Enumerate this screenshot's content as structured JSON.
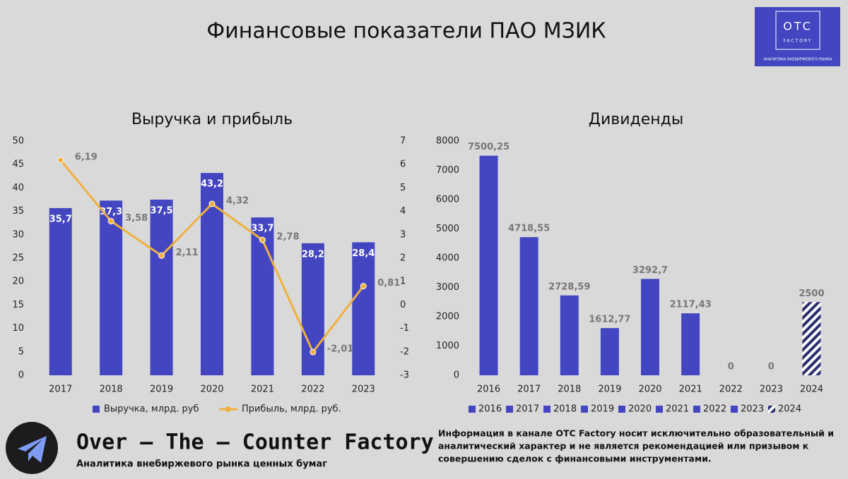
{
  "header": {
    "title": "Финансовые показатели ПАО МЗИК"
  },
  "logo": {
    "mark": "OTC",
    "name": "FACTORY",
    "caption": "АНАЛИТИКА ВНЕБИРЖЕВОГО РЫНКА"
  },
  "chart_data": [
    {
      "type": "bar",
      "title": "Выручка и прибыль",
      "categories": [
        "2017",
        "2018",
        "2019",
        "2020",
        "2021",
        "2022",
        "2023"
      ],
      "series": [
        {
          "name": "Выручка, млрд. руб",
          "type": "bar",
          "color": "#4346c0",
          "values": [
            35.7,
            37.3,
            37.5,
            43.2,
            33.7,
            28.2,
            28.4
          ],
          "value_labels": [
            "35,7",
            "37,3",
            "37,5",
            "43,2",
            "33,7",
            "28,2",
            "28,4"
          ]
        },
        {
          "name": "Прибыль, млрд. руб.",
          "type": "line",
          "axis": "y2",
          "color": "#f0b040",
          "values": [
            6.19,
            3.58,
            2.11,
            4.32,
            2.78,
            -2.01,
            0.81
          ],
          "value_labels": [
            "6,19",
            "3,58",
            "2,11",
            "4,32",
            "2,78",
            "-2,01",
            "0,81"
          ]
        }
      ],
      "ylim": [
        0,
        50
      ],
      "yticks": [
        0,
        5,
        10,
        15,
        20,
        25,
        30,
        35,
        40,
        45,
        50
      ],
      "y2lim": [
        -3,
        7
      ],
      "y2ticks": [
        -3,
        -2,
        -1,
        0,
        1,
        2,
        3,
        4,
        5,
        6,
        7
      ],
      "legend": "bottom",
      "grid": false
    },
    {
      "type": "bar",
      "title": "Дивиденды",
      "categories": [
        "2016",
        "2017",
        "2018",
        "2019",
        "2020",
        "2021",
        "2022",
        "2023",
        "2024"
      ],
      "values": [
        7500.25,
        4718.55,
        2728.59,
        1612.77,
        3292.7,
        2117.43,
        0,
        0,
        2500
      ],
      "value_labels": [
        "7500,25",
        "4718,55",
        "2728,59",
        "1612,77",
        "3292,7",
        "2117,43",
        "0",
        "0",
        "2500"
      ],
      "styles": [
        "solid",
        "solid",
        "solid",
        "solid",
        "solid",
        "solid",
        "solid",
        "solid",
        "hatched"
      ],
      "color": "#4346c0",
      "ylim": [
        0,
        8000
      ],
      "yticks": [
        0,
        1000,
        2000,
        3000,
        4000,
        5000,
        6000,
        7000,
        8000
      ],
      "legend": "bottom",
      "grid": false
    }
  ],
  "footer": {
    "brand": "Over – The – Counter Factory",
    "tagline": "Аналитика внебиржевого рынка ценных бумаг",
    "disclaimer": [
      "Информация в канале OTC Factory носит исключительно образовательный и",
      "аналитический характер и не является рекомендацией или призывом к",
      "совершению сделок с финансовыми инструментами."
    ]
  }
}
